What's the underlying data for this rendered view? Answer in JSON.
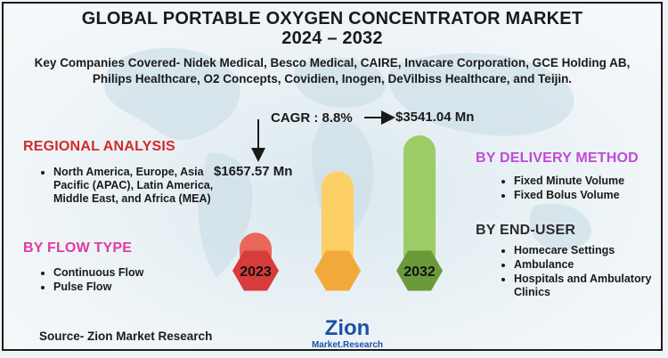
{
  "header": {
    "title_line1": "GLOBAL PORTABLE OXYGEN CONCENTRATOR MARKET",
    "title_line2": "2024 – 2032",
    "subtitle": "Key Companies Covered- Nidek Medical, Besco Medical, CAIRE, Invacare Corporation, GCE Holding AB, Philips Healthcare, O2 Concepts, Covidien, Inogen, DeVilbiss Healthcare, and Teijin."
  },
  "regional": {
    "title": "REGIONAL ANALYSIS",
    "items": [
      "North America, Europe, Asia Pacific (APAC), Latin America, Middle East, and Africa (MEA)"
    ]
  },
  "flow_type": {
    "title": "BY FLOW TYPE",
    "items": [
      "Continuous Flow",
      "Pulse Flow"
    ]
  },
  "delivery_method": {
    "title": "BY DELIVERY METHOD",
    "items": [
      "Fixed Minute Volume",
      "Fixed Bolus Volume"
    ]
  },
  "end_user": {
    "title": "BY END-USER",
    "items": [
      "Homecare Settings",
      "Ambulance",
      "Hospitals and Ambulatory Clinics"
    ]
  },
  "source": "Source- Zion Market Research",
  "logo": {
    "line1": "Zion",
    "line2": "Market.Research"
  },
  "colors": {
    "bar_2023": "#e8665a",
    "badge_2023": "#d83b3b",
    "bar_mid": "#fccf67",
    "badge_mid": "#f2a93c",
    "bar_2032": "#9ccc65",
    "badge_2032": "#6a9a3a",
    "title_red": "#d32a2a",
    "title_pink": "#e03ba0",
    "title_purple": "#c04ad6"
  },
  "chart_data": {
    "type": "bar",
    "categories": [
      "2023",
      "",
      "2032"
    ],
    "values": [
      1657.57,
      null,
      3541.04
    ],
    "value_labels": [
      "$1657.57 Mn",
      "",
      "$3541.04 Mn"
    ],
    "cagr_label": "CAGR : 8.8%",
    "unit": "USD Million"
  }
}
